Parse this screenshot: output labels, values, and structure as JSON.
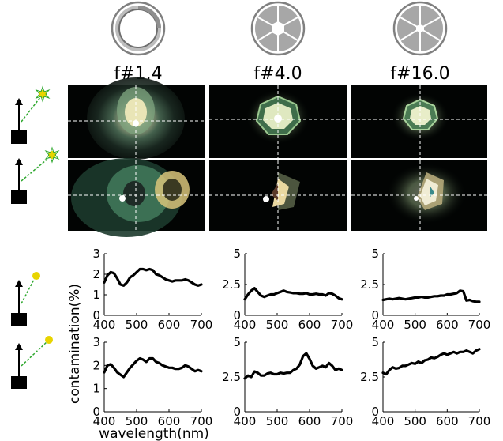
{
  "aperture_columns": [
    {
      "label": "f#1.4",
      "icon": "aperture-wide-icon"
    },
    {
      "label": "f#4.0",
      "icon": "aperture-medium-icon"
    },
    {
      "label": "f#16.0",
      "icon": "aperture-narrow-icon"
    }
  ],
  "row_icons": [
    "camera-sun-icon-high",
    "camera-sun-icon-low"
  ],
  "ylabel": "contamination(%)",
  "xlabel": "wavelength(nm)",
  "colors": {
    "line": "#000000",
    "crosshair": "#ffffff",
    "sun": "#e8d400",
    "ray": "#2ea82e"
  },
  "chart_data": [
    {
      "type": "line",
      "row": 0,
      "col": 0,
      "ylim": [
        0,
        3
      ],
      "yticks": [
        "0",
        "1",
        "2",
        "3"
      ],
      "xlim": [
        400,
        700
      ],
      "xticks": [
        "400",
        "500",
        "600",
        "700"
      ],
      "x": [
        400,
        410,
        420,
        430,
        440,
        450,
        460,
        470,
        480,
        490,
        500,
        510,
        520,
        530,
        540,
        550,
        560,
        570,
        580,
        590,
        600,
        610,
        620,
        630,
        640,
        650,
        660,
        670,
        680,
        690,
        700
      ],
      "y": [
        1.6,
        1.95,
        2.1,
        2.05,
        1.8,
        1.5,
        1.45,
        1.6,
        1.85,
        1.95,
        2.1,
        2.25,
        2.25,
        2.2,
        2.25,
        2.2,
        2.0,
        1.95,
        1.85,
        1.75,
        1.7,
        1.65,
        1.7,
        1.7,
        1.7,
        1.75,
        1.7,
        1.6,
        1.5,
        1.45,
        1.5
      ]
    },
    {
      "type": "line",
      "row": 0,
      "col": 1,
      "ylim": [
        0,
        5
      ],
      "yticks": [
        "0",
        "2.5",
        "5"
      ],
      "xlim": [
        400,
        700
      ],
      "xticks": [
        "400",
        "500",
        "600",
        "700"
      ],
      "x": [
        400,
        410,
        420,
        430,
        440,
        450,
        460,
        470,
        480,
        490,
        500,
        510,
        520,
        530,
        540,
        550,
        560,
        570,
        580,
        590,
        600,
        610,
        620,
        630,
        640,
        650,
        660,
        670,
        680,
        690,
        700
      ],
      "y": [
        1.3,
        1.7,
        2.0,
        2.2,
        1.9,
        1.6,
        1.5,
        1.6,
        1.7,
        1.7,
        1.8,
        1.9,
        2.0,
        1.9,
        1.85,
        1.8,
        1.8,
        1.75,
        1.75,
        1.8,
        1.7,
        1.7,
        1.75,
        1.7,
        1.7,
        1.6,
        1.8,
        1.75,
        1.6,
        1.4,
        1.3
      ]
    },
    {
      "type": "line",
      "row": 0,
      "col": 2,
      "ylim": [
        0,
        5
      ],
      "yticks": [
        "0",
        "2.5",
        "5"
      ],
      "xlim": [
        400,
        700
      ],
      "xticks": [
        "400",
        "500",
        "600",
        "700"
      ],
      "x": [
        400,
        410,
        420,
        430,
        440,
        450,
        460,
        470,
        480,
        490,
        500,
        510,
        520,
        530,
        540,
        550,
        560,
        570,
        580,
        590,
        600,
        610,
        620,
        630,
        640,
        650,
        660,
        670,
        680,
        690,
        700
      ],
      "y": [
        1.25,
        1.3,
        1.35,
        1.3,
        1.35,
        1.4,
        1.35,
        1.3,
        1.35,
        1.4,
        1.45,
        1.45,
        1.5,
        1.45,
        1.45,
        1.5,
        1.55,
        1.55,
        1.6,
        1.6,
        1.7,
        1.7,
        1.75,
        1.8,
        2.0,
        1.95,
        1.2,
        1.25,
        1.15,
        1.1,
        1.1
      ]
    },
    {
      "type": "line",
      "row": 1,
      "col": 0,
      "ylim": [
        0,
        3
      ],
      "yticks": [
        "0",
        "1",
        "2",
        "3"
      ],
      "xlim": [
        400,
        700
      ],
      "xticks": [
        "400",
        "500",
        "600",
        "700"
      ],
      "x": [
        400,
        410,
        420,
        430,
        440,
        450,
        460,
        470,
        480,
        490,
        500,
        510,
        520,
        530,
        540,
        550,
        560,
        570,
        580,
        590,
        600,
        610,
        620,
        630,
        640,
        650,
        660,
        670,
        680,
        690,
        700
      ],
      "y": [
        1.7,
        2.0,
        2.05,
        1.9,
        1.7,
        1.6,
        1.5,
        1.7,
        1.9,
        2.05,
        2.2,
        2.3,
        2.25,
        2.15,
        2.3,
        2.3,
        2.15,
        2.1,
        2.0,
        1.95,
        1.9,
        1.9,
        1.85,
        1.85,
        1.9,
        2.0,
        1.95,
        1.85,
        1.75,
        1.8,
        1.75
      ]
    },
    {
      "type": "line",
      "row": 1,
      "col": 1,
      "ylim": [
        0,
        5
      ],
      "yticks": [
        "0",
        "2.5",
        "5"
      ],
      "xlim": [
        400,
        700
      ],
      "xticks": [
        "400",
        "500",
        "600",
        "700"
      ],
      "x": [
        400,
        410,
        420,
        430,
        440,
        450,
        460,
        470,
        480,
        490,
        500,
        510,
        520,
        530,
        540,
        550,
        560,
        570,
        580,
        590,
        600,
        610,
        620,
        630,
        640,
        650,
        660,
        670,
        680,
        690,
        700
      ],
      "y": [
        2.4,
        2.6,
        2.5,
        2.9,
        2.8,
        2.6,
        2.6,
        2.75,
        2.8,
        2.7,
        2.7,
        2.8,
        2.75,
        2.8,
        2.8,
        3.0,
        3.1,
        3.4,
        4.0,
        4.2,
        3.8,
        3.3,
        3.1,
        3.2,
        3.3,
        3.2,
        3.5,
        3.3,
        3.0,
        3.1,
        3.0
      ]
    },
    {
      "type": "line",
      "row": 1,
      "col": 2,
      "ylim": [
        0,
        5
      ],
      "yticks": [
        "0",
        "2.5",
        "5"
      ],
      "xlim": [
        400,
        700
      ],
      "xticks": [
        "400",
        "500",
        "600",
        "700"
      ],
      "x": [
        400,
        410,
        420,
        430,
        440,
        450,
        460,
        470,
        480,
        490,
        500,
        510,
        520,
        530,
        540,
        550,
        560,
        570,
        580,
        590,
        600,
        610,
        620,
        630,
        640,
        650,
        660,
        670,
        680,
        690,
        700
      ],
      "y": [
        2.8,
        2.7,
        3.0,
        3.2,
        3.1,
        3.15,
        3.3,
        3.3,
        3.4,
        3.5,
        3.45,
        3.6,
        3.5,
        3.7,
        3.75,
        3.9,
        3.85,
        3.95,
        4.1,
        4.2,
        4.1,
        4.2,
        4.3,
        4.2,
        4.3,
        4.3,
        4.4,
        4.3,
        4.2,
        4.4,
        4.5
      ]
    }
  ]
}
